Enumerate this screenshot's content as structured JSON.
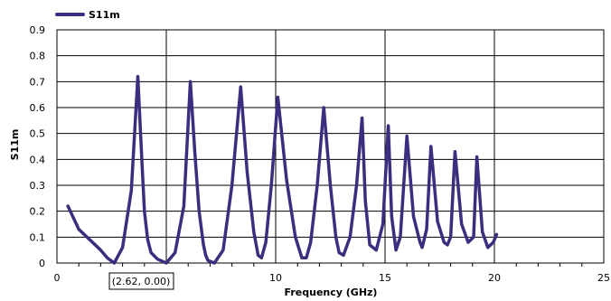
{
  "chart_data": {
    "type": "line",
    "xlabel": "Frequency (GHz)",
    "ylabel": "S11m",
    "xlim": [
      0,
      25
    ],
    "ylim": [
      0,
      0.9
    ],
    "x_ticks": [
      "0",
      "5",
      "10",
      "15",
      "20",
      "25"
    ],
    "y_ticks": [
      "0",
      "0.1",
      "0.2",
      "0.3",
      "0.4",
      "0.5",
      "0.6",
      "0.7",
      "0.8",
      "0.9"
    ],
    "grid": true,
    "legend_position": "top-left",
    "series": [
      {
        "name": "S11m",
        "color": "#3a2f7e",
        "x": [
          0.5,
          1.0,
          1.5,
          2.0,
          2.3,
          2.62,
          3.0,
          3.4,
          3.7,
          3.88,
          4.0,
          4.15,
          4.3,
          4.6,
          5.0,
          5.4,
          5.8,
          6.1,
          6.3,
          6.5,
          6.7,
          6.8,
          6.9,
          7.2,
          7.6,
          8.0,
          8.4,
          8.7,
          9.0,
          9.2,
          9.35,
          9.55,
          9.8,
          10.1,
          10.5,
          10.9,
          11.2,
          11.4,
          11.6,
          11.9,
          12.2,
          12.5,
          12.75,
          12.9,
          13.1,
          13.4,
          13.7,
          13.95,
          14.1,
          14.3,
          14.6,
          14.9,
          15.15,
          15.3,
          15.5,
          15.7,
          16.0,
          16.3,
          16.6,
          16.7,
          16.9,
          17.1,
          17.4,
          17.7,
          17.85,
          18.0,
          18.2,
          18.5,
          18.8,
          19.05,
          19.2,
          19.45,
          19.7,
          19.95,
          20.1
        ],
        "values": [
          0.22,
          0.13,
          0.09,
          0.05,
          0.02,
          0.0,
          0.06,
          0.28,
          0.72,
          0.4,
          0.2,
          0.09,
          0.04,
          0.015,
          0.0,
          0.04,
          0.22,
          0.7,
          0.43,
          0.2,
          0.07,
          0.03,
          0.01,
          0.0,
          0.05,
          0.3,
          0.68,
          0.35,
          0.12,
          0.03,
          0.02,
          0.08,
          0.3,
          0.64,
          0.32,
          0.1,
          0.02,
          0.02,
          0.08,
          0.3,
          0.6,
          0.3,
          0.1,
          0.04,
          0.03,
          0.1,
          0.3,
          0.56,
          0.24,
          0.07,
          0.05,
          0.15,
          0.53,
          0.18,
          0.05,
          0.1,
          0.49,
          0.18,
          0.08,
          0.06,
          0.13,
          0.45,
          0.16,
          0.08,
          0.07,
          0.1,
          0.43,
          0.15,
          0.08,
          0.1,
          0.41,
          0.12,
          0.06,
          0.08,
          0.11
        ]
      }
    ],
    "annotation": "(2.62, 0.00)"
  }
}
